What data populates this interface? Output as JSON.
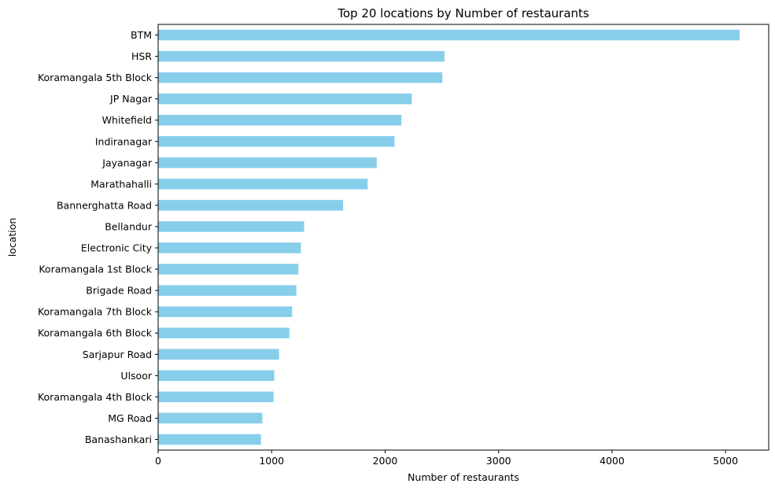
{
  "chart_data": {
    "type": "bar",
    "orientation": "horizontal",
    "title": "Top 20 locations by Number of restaurants",
    "xlabel": "Number of restaurants",
    "ylabel": "location",
    "xlim": [
      0,
      5380
    ],
    "xticks": [
      0,
      1000,
      2000,
      3000,
      4000,
      5000
    ],
    "xtick_labels": [
      "0",
      "1000",
      "2000",
      "3000",
      "4000",
      "5000"
    ],
    "bar_color": "#87ceeb",
    "grid": false,
    "categories": [
      "BTM",
      "HSR",
      "Koramangala 5th Block",
      "JP Nagar",
      "Whitefield",
      "Indiranagar",
      "Jayanagar",
      "Marathahalli",
      "Bannerghatta Road",
      "Bellandur",
      "Electronic City",
      "Koramangala 1st Block",
      "Brigade Road",
      "Koramangala 7th Block",
      "Koramangala 6th Block",
      "Sarjapur Road",
      "Ulsoor",
      "Koramangala 4th Block",
      "MG Road",
      "Banashankari"
    ],
    "values": [
      5124,
      2523,
      2504,
      2235,
      2144,
      2083,
      1926,
      1846,
      1630,
      1286,
      1258,
      1236,
      1218,
      1181,
      1156,
      1065,
      1023,
      1017,
      918,
      906
    ]
  }
}
